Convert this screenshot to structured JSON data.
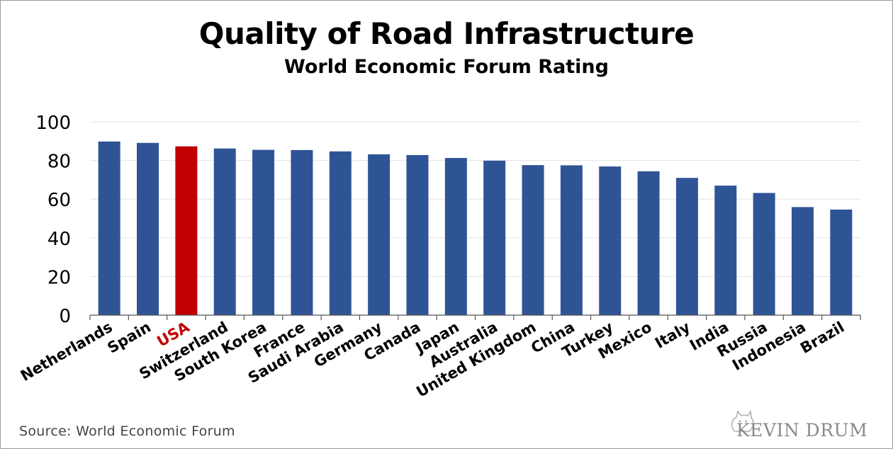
{
  "title": "Quality of Road Infrastructure",
  "subtitle": "World Economic Forum Rating",
  "source": "Source: World Economic Forum",
  "brand": "KEVIN DRUM",
  "icons": {
    "brand_logo": "cat-logo-icon"
  },
  "colors": {
    "bar": "#2f5496",
    "highlight_bar": "#c00000",
    "highlight_label": "#c00000",
    "gridline": "#e3e3e3"
  },
  "chart_data": {
    "type": "bar",
    "title": "Quality of Road Infrastructure",
    "subtitle": "World Economic Forum Rating",
    "xlabel": "",
    "ylabel": "",
    "ylim": [
      0,
      100
    ],
    "yticks": [
      0,
      20,
      40,
      60,
      80,
      100
    ],
    "grid": true,
    "legend": "none",
    "highlight": "USA",
    "categories": [
      "Netherlands",
      "Spain",
      "USA",
      "Switzerland",
      "South Korea",
      "France",
      "Saudi Arabia",
      "Germany",
      "Canada",
      "Japan",
      "Australia",
      "United Kingdom",
      "China",
      "Turkey",
      "Mexico",
      "Italy",
      "India",
      "Russia",
      "Indonesia",
      "Brazil"
    ],
    "values": [
      89.8,
      89.1,
      87.3,
      86.2,
      85.5,
      85.4,
      84.7,
      83.2,
      82.8,
      81.3,
      79.9,
      77.6,
      77.5,
      76.9,
      74.4,
      71.0,
      67.0,
      63.2,
      55.9,
      54.6
    ]
  }
}
